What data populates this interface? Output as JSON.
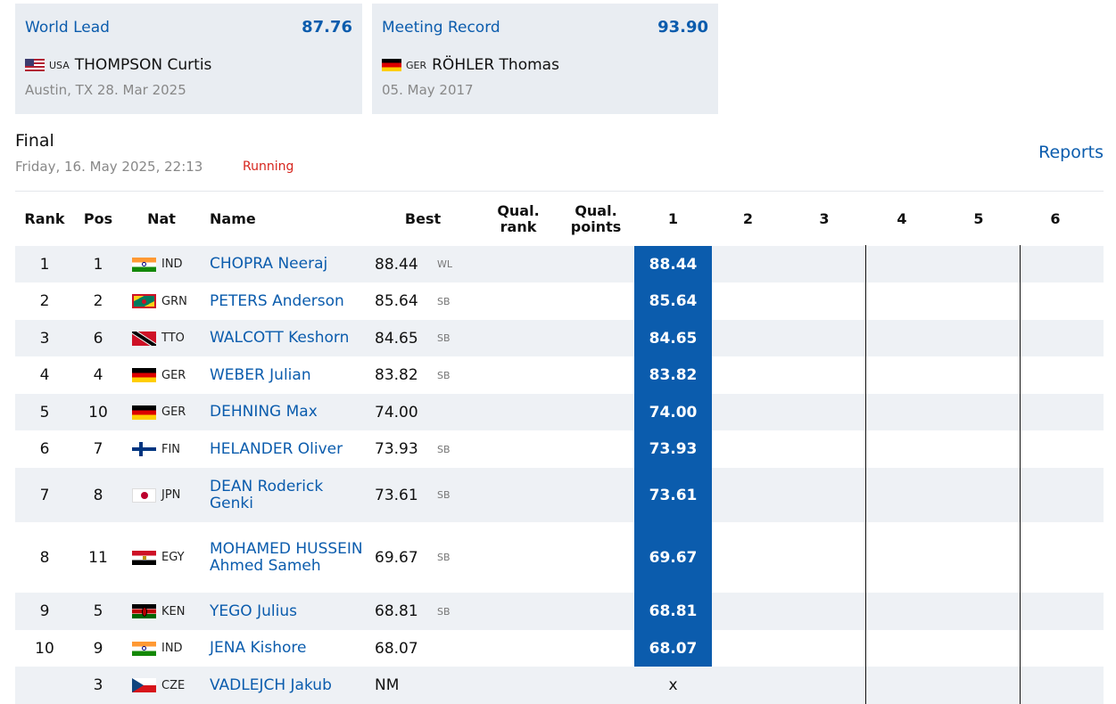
{
  "records": [
    {
      "title": "World Lead",
      "value": "87.76",
      "flag": "usa",
      "code": "USA",
      "athlete": "THOMPSON Curtis",
      "meta": "Austin, TX 28. Mar 2025"
    },
    {
      "title": "Meeting Record",
      "value": "93.90",
      "flag": "ger",
      "code": "GER",
      "athlete": "RÖHLER Thomas",
      "meta": "05. May 2017"
    }
  ],
  "event": {
    "title": "Final",
    "date": "Friday, 16. May 2025, 22:13",
    "status": "Running",
    "reports": "Reports"
  },
  "headers": {
    "rank": "Rank",
    "pos": "Pos",
    "nat": "Nat",
    "name": "Name",
    "best": "Best",
    "qual_rank": "Qual. rank",
    "qual_points": "Qual. points",
    "a1": "1",
    "a2": "2",
    "a3": "3",
    "a4": "4",
    "a5": "5",
    "a6": "6"
  },
  "rows": [
    {
      "rank": "1",
      "pos": "1",
      "flag": "ind",
      "nat": "IND",
      "name": "CHOPRA Neeraj",
      "best": "88.44",
      "tag": "WL",
      "a1": "88.44"
    },
    {
      "rank": "2",
      "pos": "2",
      "flag": "grn",
      "nat": "GRN",
      "name": "PETERS Anderson",
      "best": "85.64",
      "tag": "SB",
      "a1": "85.64"
    },
    {
      "rank": "3",
      "pos": "6",
      "flag": "tto",
      "nat": "TTO",
      "name": "WALCOTT Keshorn",
      "best": "84.65",
      "tag": "SB",
      "a1": "84.65"
    },
    {
      "rank": "4",
      "pos": "4",
      "flag": "ger",
      "nat": "GER",
      "name": "WEBER Julian",
      "best": "83.82",
      "tag": "SB",
      "a1": "83.82"
    },
    {
      "rank": "5",
      "pos": "10",
      "flag": "ger",
      "nat": "GER",
      "name": "DEHNING Max",
      "best": "74.00",
      "tag": "",
      "a1": "74.00"
    },
    {
      "rank": "6",
      "pos": "7",
      "flag": "fin",
      "nat": "FIN",
      "name": "HELANDER Oliver",
      "best": "73.93",
      "tag": "SB",
      "a1": "73.93"
    },
    {
      "rank": "7",
      "pos": "8",
      "flag": "jpn",
      "nat": "JPN",
      "name": "DEAN Roderick Genki",
      "best": "73.61",
      "tag": "SB",
      "a1": "73.61"
    },
    {
      "rank": "8",
      "pos": "11",
      "flag": "egy",
      "nat": "EGY",
      "name": "MOHAMED HUSSEIN Ahmed Sameh",
      "best": "69.67",
      "tag": "SB",
      "a1": "69.67"
    },
    {
      "rank": "9",
      "pos": "5",
      "flag": "ken",
      "nat": "KEN",
      "name": "YEGO Julius",
      "best": "68.81",
      "tag": "SB",
      "a1": "68.81"
    },
    {
      "rank": "10",
      "pos": "9",
      "flag": "ind",
      "nat": "IND",
      "name": "JENA Kishore",
      "best": "68.07",
      "tag": "",
      "a1": "68.07"
    },
    {
      "rank": "",
      "pos": "3",
      "flag": "cze",
      "nat": "CZE",
      "name": "VADLEJCH Jakub",
      "best": "NM",
      "tag": "",
      "a1": "x"
    }
  ],
  "colors": {
    "accent": "#0b5cad",
    "status": "#d6241c",
    "card_bg": "#e9edf2",
    "row_alt": "#eef1f5"
  }
}
